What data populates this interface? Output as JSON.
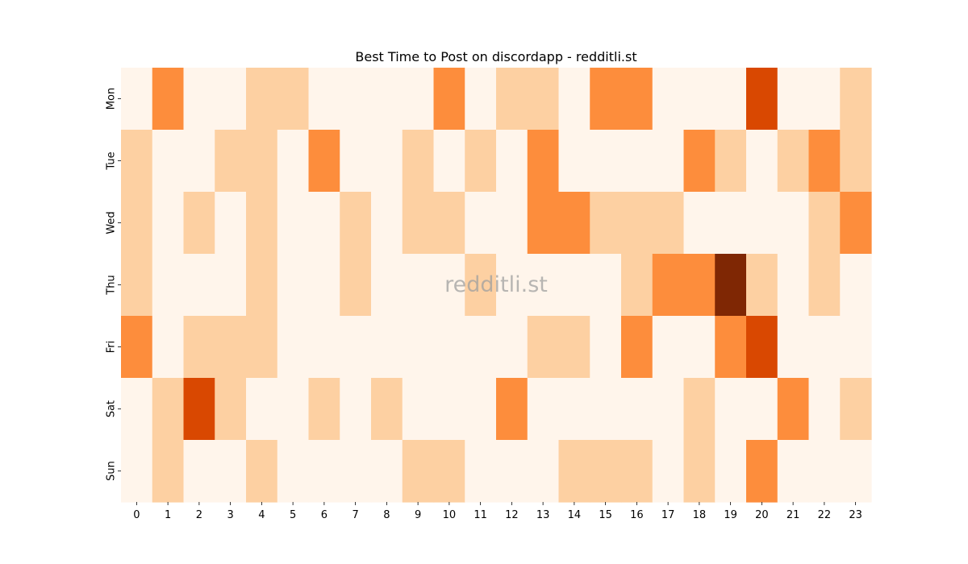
{
  "chart_data": {
    "type": "heatmap",
    "title": "Best Time to Post on discordapp - redditli.st",
    "watermark": "redditli.st",
    "x_categories": [
      "0",
      "1",
      "2",
      "3",
      "4",
      "5",
      "6",
      "7",
      "8",
      "9",
      "10",
      "11",
      "12",
      "13",
      "14",
      "15",
      "16",
      "17",
      "18",
      "19",
      "20",
      "21",
      "22",
      "23"
    ],
    "y_categories": [
      "Mon",
      "Tue",
      "Wed",
      "Thu",
      "Fri",
      "Sat",
      "Sun"
    ],
    "value_scale": [
      0,
      4
    ],
    "colormap": [
      "#fff5eb",
      "#fdd0a2",
      "#fd8d3c",
      "#d94801",
      "#7f2704"
    ],
    "values": [
      [
        0,
        2,
        0,
        0,
        1,
        1,
        0,
        0,
        0,
        0,
        2,
        0,
        1,
        1,
        0,
        2,
        2,
        0,
        0,
        0,
        3,
        0,
        0,
        1
      ],
      [
        1,
        0,
        0,
        1,
        1,
        0,
        2,
        0,
        0,
        1,
        0,
        1,
        0,
        2,
        0,
        0,
        0,
        0,
        2,
        1,
        0,
        1,
        2,
        1
      ],
      [
        1,
        0,
        1,
        0,
        1,
        0,
        0,
        1,
        0,
        1,
        1,
        0,
        0,
        2,
        2,
        1,
        1,
        1,
        0,
        0,
        0,
        0,
        1,
        2
      ],
      [
        1,
        0,
        0,
        0,
        1,
        0,
        0,
        1,
        0,
        0,
        0,
        1,
        0,
        0,
        0,
        0,
        1,
        2,
        2,
        4,
        1,
        0,
        1,
        0
      ],
      [
        2,
        0,
        1,
        1,
        1,
        0,
        0,
        0,
        0,
        0,
        0,
        0,
        0,
        1,
        1,
        0,
        2,
        0,
        0,
        2,
        3,
        0,
        0,
        0
      ],
      [
        0,
        1,
        3,
        1,
        0,
        0,
        1,
        0,
        1,
        0,
        0,
        0,
        2,
        0,
        0,
        0,
        0,
        0,
        1,
        0,
        0,
        2,
        0,
        1
      ],
      [
        0,
        1,
        0,
        0,
        1,
        0,
        0,
        0,
        0,
        1,
        1,
        0,
        0,
        0,
        1,
        1,
        1,
        0,
        1,
        0,
        2,
        0,
        0,
        0
      ]
    ]
  }
}
